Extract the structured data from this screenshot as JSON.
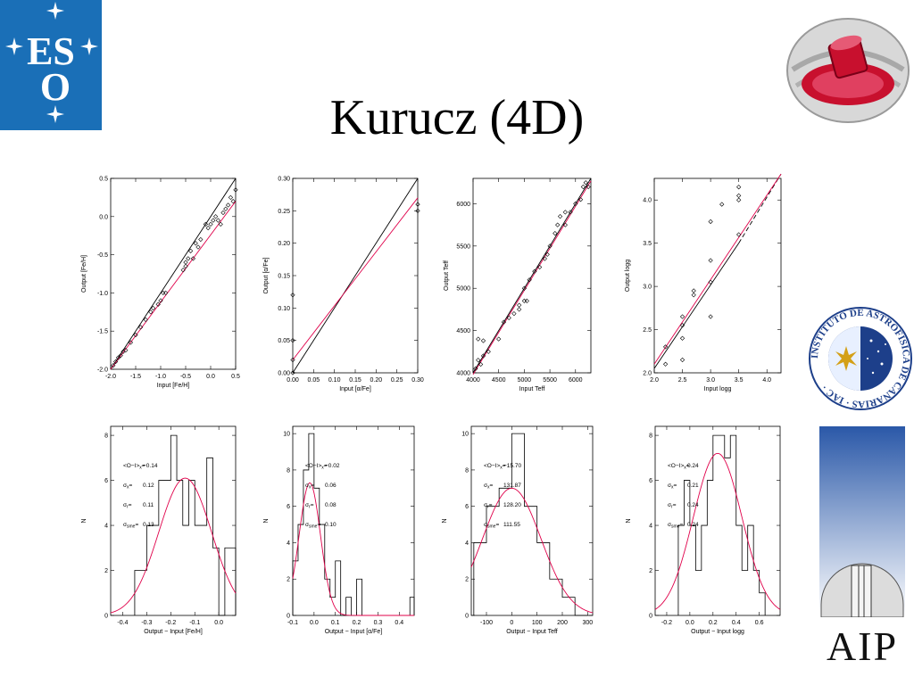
{
  "slide": {
    "title": "Kurucz (4D)",
    "eso_logo_text": "ESO",
    "aip_logo_text": "AIP",
    "iac_logo_text": "INSTITUTO DE ASTROFISICA DE CANARIAS · IAC ·"
  },
  "colors": {
    "fit_line": "#e0004a",
    "identity_line": "#000000",
    "eso_blue": "#1a6fb7"
  },
  "chart_data": [
    {
      "type": "scatter",
      "xlabel": "Input [Fe/H]",
      "ylabel": "Output [Fe/H]",
      "xlim": [
        -2.0,
        0.5
      ],
      "ylim": [
        -2.0,
        0.5
      ],
      "xticks": [
        "-2.0",
        "-1.5",
        "-1.0",
        "-0.5",
        "0.0",
        "0.5"
      ],
      "yticks": [
        "-2.0",
        "-1.5",
        "-1.0",
        "-0.5",
        "0.0",
        "0.5"
      ],
      "xtick_values": [
        -2.0,
        -1.5,
        -1.0,
        -0.5,
        0.0,
        0.5
      ],
      "ytick_values": [
        -2.0,
        -1.5,
        -1.0,
        -0.5,
        0.0,
        0.5
      ],
      "lines": [
        {
          "name": "identity",
          "color": "#000000",
          "dashed": false,
          "from": [
            -2.0,
            -2.0
          ],
          "to": [
            0.5,
            0.5
          ]
        },
        {
          "name": "fit",
          "color": "#e0004a",
          "dashed": false,
          "from": [
            -2.0,
            -2.0
          ],
          "to": [
            0.5,
            0.2
          ]
        }
      ],
      "points": [
        [
          -1.95,
          -1.95
        ],
        [
          -1.9,
          -1.9
        ],
        [
          -1.85,
          -1.85
        ],
        [
          -1.8,
          -1.82
        ],
        [
          -1.75,
          -1.77
        ],
        [
          -1.7,
          -1.75
        ],
        [
          -1.6,
          -1.65
        ],
        [
          -1.5,
          -1.55
        ],
        [
          -1.4,
          -1.45
        ],
        [
          -1.3,
          -1.35
        ],
        [
          -1.2,
          -1.25
        ],
        [
          -1.15,
          -1.2
        ],
        [
          -1.05,
          -1.15
        ],
        [
          -1.0,
          -1.1
        ],
        [
          -0.95,
          -1.0
        ],
        [
          -0.9,
          -1.0
        ],
        [
          -0.55,
          -0.7
        ],
        [
          -0.5,
          -0.6
        ],
        [
          -0.5,
          -0.65
        ],
        [
          -0.45,
          -0.55
        ],
        [
          -0.4,
          -0.45
        ],
        [
          -0.35,
          -0.55
        ],
        [
          -0.3,
          -0.35
        ],
        [
          -0.25,
          -0.4
        ],
        [
          -0.2,
          -0.3
        ],
        [
          -0.1,
          -0.1
        ],
        [
          -0.05,
          -0.15
        ],
        [
          0.0,
          -0.1
        ],
        [
          0.05,
          -0.05
        ],
        [
          0.1,
          0.0
        ],
        [
          0.15,
          -0.05
        ],
        [
          0.2,
          -0.1
        ],
        [
          0.25,
          0.05
        ],
        [
          0.3,
          0.1
        ],
        [
          0.35,
          0.15
        ],
        [
          0.4,
          0.25
        ],
        [
          0.45,
          0.2
        ],
        [
          0.5,
          0.35
        ]
      ]
    },
    {
      "type": "scatter",
      "xlabel": "Input [α/Fe]",
      "ylabel": "Output [α/Fe]",
      "xlim": [
        0.0,
        0.3
      ],
      "ylim": [
        0.0,
        0.3
      ],
      "xticks": [
        "0.00",
        "0.05",
        "0.10",
        "0.15",
        "0.20",
        "0.25",
        "0.30"
      ],
      "yticks": [
        "0.00",
        "0.05",
        "0.10",
        "0.15",
        "0.20",
        "0.25",
        "0.30"
      ],
      "xtick_values": [
        0.0,
        0.05,
        0.1,
        0.15,
        0.2,
        0.25,
        0.3
      ],
      "ytick_values": [
        0.0,
        0.05,
        0.1,
        0.15,
        0.2,
        0.25,
        0.3
      ],
      "lines": [
        {
          "name": "identity",
          "color": "#000000",
          "dashed": false,
          "from": [
            0.0,
            0.0
          ],
          "to": [
            0.3,
            0.3
          ]
        },
        {
          "name": "fit",
          "color": "#e0004a",
          "dashed": false,
          "from": [
            0.0,
            0.02
          ],
          "to": [
            0.3,
            0.27
          ]
        }
      ],
      "points": [
        [
          0.0,
          0.12
        ],
        [
          0.0,
          0.05
        ],
        [
          0.0,
          0.02
        ],
        [
          0.0,
          0.0
        ],
        [
          0.3,
          0.26
        ],
        [
          0.3,
          0.25
        ]
      ]
    },
    {
      "type": "scatter",
      "xlabel": "Input Teff",
      "ylabel": "Output Teff",
      "xlim": [
        4000,
        6300
      ],
      "ylim": [
        4000,
        6300
      ],
      "xticks": [
        "4000",
        "4500",
        "5000",
        "5500",
        "6000"
      ],
      "yticks": [
        "4000",
        "4500",
        "5000",
        "5500",
        "6000"
      ],
      "xtick_values": [
        4000,
        4500,
        5000,
        5500,
        6000
      ],
      "ytick_values": [
        4000,
        4500,
        5000,
        5500,
        6000
      ],
      "lines": [
        {
          "name": "identity",
          "color": "#000000",
          "dashed": false,
          "from": [
            4000,
            4000
          ],
          "to": [
            6300,
            6300
          ]
        },
        {
          "name": "fit",
          "color": "#e0004a",
          "dashed": false,
          "from": [
            4000,
            3980
          ],
          "to": [
            6300,
            6270
          ]
        }
      ],
      "points": [
        [
          4050,
          4050
        ],
        [
          4100,
          4150
        ],
        [
          4100,
          4400
        ],
        [
          4150,
          4100
        ],
        [
          4200,
          4200
        ],
        [
          4200,
          4380
        ],
        [
          4300,
          4250
        ],
        [
          4500,
          4400
        ],
        [
          4600,
          4600
        ],
        [
          4700,
          4650
        ],
        [
          4800,
          4700
        ],
        [
          4900,
          4800
        ],
        [
          4900,
          4750
        ],
        [
          5000,
          4850
        ],
        [
          5000,
          5000
        ],
        [
          5050,
          4850
        ],
        [
          5100,
          5100
        ],
        [
          5200,
          5200
        ],
        [
          5300,
          5250
        ],
        [
          5400,
          5350
        ],
        [
          5450,
          5400
        ],
        [
          5500,
          5500
        ],
        [
          5600,
          5650
        ],
        [
          5650,
          5750
        ],
        [
          5700,
          5850
        ],
        [
          5800,
          5750
        ],
        [
          5800,
          5900
        ],
        [
          5900,
          5900
        ],
        [
          6000,
          6000
        ],
        [
          6100,
          6050
        ],
        [
          6150,
          6200
        ],
        [
          6200,
          6250
        ],
        [
          6250,
          6200
        ]
      ]
    },
    {
      "type": "scatter",
      "xlabel": "Input logg",
      "ylabel": "Output logg",
      "xlim": [
        2.0,
        4.25
      ],
      "ylim": [
        2.0,
        4.25
      ],
      "xticks": [
        "2.0",
        "2.5",
        "3.0",
        "3.5",
        "4.0"
      ],
      "yticks": [
        "2.0",
        "2.5",
        "3.0",
        "3.5",
        "4.0"
      ],
      "xtick_values": [
        2.0,
        2.5,
        3.0,
        3.5,
        4.0
      ],
      "ytick_values": [
        2.0,
        2.5,
        3.0,
        3.5,
        4.0
      ],
      "lines": [
        {
          "name": "identity",
          "color": "#000000",
          "dashed": false,
          "from": [
            2.0,
            2.05
          ],
          "to": [
            3.5,
            3.5
          ]
        },
        {
          "name": "identity-dashed",
          "color": "#000000",
          "dashed": true,
          "from": [
            3.5,
            3.5
          ],
          "to": [
            4.25,
            4.3
          ]
        },
        {
          "name": "fit",
          "color": "#e0004a",
          "dashed": false,
          "from": [
            2.0,
            2.1
          ],
          "to": [
            4.25,
            4.3
          ]
        }
      ],
      "points": [
        [
          2.2,
          2.1
        ],
        [
          2.2,
          2.3
        ],
        [
          2.5,
          2.55
        ],
        [
          2.5,
          2.65
        ],
        [
          2.5,
          2.4
        ],
        [
          2.5,
          2.15
        ],
        [
          2.7,
          2.95
        ],
        [
          2.7,
          2.9
        ],
        [
          3.0,
          3.3
        ],
        [
          3.0,
          3.75
        ],
        [
          3.0,
          2.65
        ],
        [
          3.0,
          3.05
        ],
        [
          3.2,
          3.95
        ],
        [
          3.5,
          4.15
        ],
        [
          3.5,
          4.05
        ],
        [
          3.5,
          4.0
        ],
        [
          3.5,
          3.6
        ]
      ]
    },
    {
      "type": "histogram",
      "xlabel": "Output − Input [Fe/H]",
      "ylabel": "N",
      "xlim": [
        -0.45,
        0.07
      ],
      "ylim": [
        0,
        8.4
      ],
      "xticks": [
        "-0.4",
        "-0.3",
        "-0.2",
        "-0.1",
        "0.0"
      ],
      "yticks": [
        "0",
        "2",
        "4",
        "6",
        "8"
      ],
      "xtick_values": [
        -0.4,
        -0.3,
        -0.2,
        -0.1,
        0.0
      ],
      "ytick_values": [
        0,
        2,
        4,
        6,
        8
      ],
      "bin_edges": [
        -0.35,
        -0.3,
        -0.25,
        -0.2,
        -0.175,
        -0.15,
        -0.125,
        -0.1,
        -0.075,
        -0.05,
        -0.025,
        0.0,
        0.025,
        0.07
      ],
      "counts": [
        2,
        4,
        6,
        8,
        6,
        4,
        6,
        4,
        4,
        7,
        3,
        0,
        3
      ],
      "gaussian": {
        "mean": -0.14,
        "sigma": 0.11,
        "peak": 6.1
      },
      "stats": [
        {
          "label": "<O−I>",
          "sub": "x",
          "value": "−0.14"
        },
        {
          "label": "σ",
          "sub": "x",
          "value": "0.12"
        },
        {
          "label": "σ",
          "sub": "r",
          "value": "0.11"
        },
        {
          "label": "σ",
          "sub": "sme",
          "value": "0.13"
        }
      ]
    },
    {
      "type": "histogram",
      "xlabel": "Output − Input [α/Fe]",
      "ylabel": "N",
      "xlim": [
        -0.1,
        0.47
      ],
      "ylim": [
        0,
        10.4
      ],
      "xticks": [
        "-0.1",
        "0.0",
        "0.1",
        "0.2",
        "0.3",
        "0.4"
      ],
      "yticks": [
        "0",
        "2",
        "4",
        "6",
        "8",
        "10"
      ],
      "xtick_values": [
        -0.1,
        0.0,
        0.1,
        0.2,
        0.3,
        0.4
      ],
      "ytick_values": [
        0,
        2,
        4,
        6,
        8,
        10
      ],
      "bin_edges": [
        -0.1,
        -0.075,
        -0.05,
        -0.025,
        0.0,
        0.025,
        0.05,
        0.075,
        0.1,
        0.125,
        0.15,
        0.175,
        0.2,
        0.225,
        0.25,
        0.275,
        0.3,
        0.45,
        0.47
      ],
      "counts": [
        3,
        5,
        8,
        10,
        7,
        5,
        2,
        1,
        3,
        0,
        1,
        0,
        2,
        0,
        0,
        0,
        0,
        1
      ],
      "gaussian": {
        "mean": -0.02,
        "sigma": 0.05,
        "peak": 7.3
      },
      "stats": [
        {
          "label": "<O−I>",
          "sub": "x",
          "value": "−0.02"
        },
        {
          "label": "σ",
          "sub": "x",
          "value": "0.06"
        },
        {
          "label": "σ",
          "sub": "r",
          "value": "0.08"
        },
        {
          "label": "σ",
          "sub": "sme",
          "value": "0.10"
        }
      ]
    },
    {
      "type": "histogram",
      "xlabel": "Output − Input Teff",
      "ylabel": "N",
      "xlim": [
        -160,
        320
      ],
      "ylim": [
        0,
        10.4
      ],
      "xticks": [
        "-100",
        "0",
        "100",
        "200",
        "300"
      ],
      "yticks": [
        "0",
        "2",
        "4",
        "6",
        "8",
        "10"
      ],
      "xtick_values": [
        -100,
        0,
        100,
        200,
        300
      ],
      "ytick_values": [
        0,
        2,
        4,
        6,
        8,
        10
      ],
      "bin_edges": [
        -150,
        -100,
        -50,
        0,
        50,
        100,
        150,
        200,
        250,
        300
      ],
      "counts": [
        4,
        6,
        7,
        10,
        6,
        4,
        2,
        1,
        0
      ],
      "gaussian": {
        "mean": 0,
        "sigma": 115,
        "peak": 7.0
      },
      "stats": [
        {
          "label": "<O−I>",
          "sub": "x",
          "value": "−15.70"
        },
        {
          "label": "σ",
          "sub": "x",
          "value": "131.87"
        },
        {
          "label": "σ",
          "sub": "r",
          "value": "128.20"
        },
        {
          "label": "σ",
          "sub": "sme",
          "value": "111.55"
        }
      ]
    },
    {
      "type": "histogram",
      "xlabel": "Output − Input logg",
      "ylabel": "N",
      "xlim": [
        -0.3,
        0.78
      ],
      "ylim": [
        0,
        8.4
      ],
      "xticks": [
        "-0.2",
        "0.0",
        "0.2",
        "0.4",
        "0.6"
      ],
      "yticks": [
        "0",
        "2",
        "4",
        "6",
        "8"
      ],
      "xtick_values": [
        -0.2,
        0.0,
        0.2,
        0.4,
        0.6
      ],
      "ytick_values": [
        0,
        2,
        4,
        6,
        8
      ],
      "bin_edges": [
        -0.1,
        -0.05,
        0.0,
        0.05,
        0.1,
        0.15,
        0.2,
        0.25,
        0.3,
        0.35,
        0.4,
        0.45,
        0.5,
        0.55,
        0.6,
        0.65
      ],
      "counts": [
        4,
        6,
        4,
        2,
        4,
        6,
        8,
        8,
        7,
        8,
        4,
        2,
        4,
        2,
        1
      ],
      "gaussian": {
        "mean": 0.24,
        "sigma": 0.21,
        "peak": 7.2
      },
      "stats": [
        {
          "label": "<O−I>",
          "sub": "x",
          "value": "0.24"
        },
        {
          "label": "σ",
          "sub": "x",
          "value": "0.21"
        },
        {
          "label": "σ",
          "sub": "r",
          "value": "0.24"
        },
        {
          "label": "σ",
          "sub": "sme",
          "value": "0.24"
        }
      ]
    }
  ]
}
